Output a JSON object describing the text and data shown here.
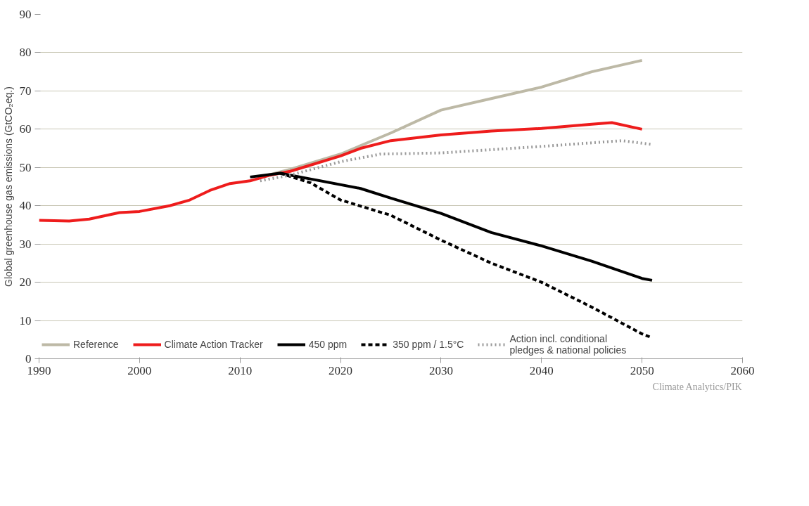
{
  "chart_data": {
    "type": "line",
    "ylabel": "Global greenhouse gas emissions (GtCO₂eq.)",
    "xlim": [
      1990,
      2060
    ],
    "xticks": [
      1990,
      2000,
      2010,
      2020,
      2030,
      2040,
      2050,
      2060
    ],
    "ylim": [
      0,
      90
    ],
    "yticks": [
      0,
      10,
      20,
      30,
      40,
      50,
      60,
      70,
      80,
      90
    ],
    "grid": "y",
    "legend": "bottom",
    "line_style": "solid",
    "marker": "none",
    "series": [
      {
        "name": "Reference",
        "color": "#bdb9a6",
        "x": [
          2012,
          2015,
          2020,
          2025,
          2030,
          2035,
          2040,
          2045,
          2050
        ],
        "values": [
          47.5,
          49.5,
          53.5,
          59,
          65,
          68,
          71,
          75,
          78
        ]
      },
      {
        "name": "Climate Action Tracker",
        "color": "#ee1c1c",
        "x": [
          1990,
          1993,
          1995,
          1998,
          2000,
          2003,
          2005,
          2007,
          2009,
          2011,
          2013,
          2015,
          2020,
          2022,
          2025,
          2030,
          2035,
          2040,
          2045,
          2047,
          2050
        ],
        "values": [
          36.2,
          36,
          36.5,
          38.2,
          38.5,
          40,
          41.5,
          44,
          45.8,
          46.5,
          48,
          49,
          53,
          55,
          57,
          58.5,
          59.5,
          60.2,
          61.3,
          61.7,
          60
        ]
      },
      {
        "name": "450 ppm",
        "color": "#000000",
        "x": [
          2011,
          2014,
          2017,
          2022,
          2025,
          2030,
          2035,
          2040,
          2045,
          2050,
          2051
        ],
        "values": [
          47.5,
          48.5,
          47,
          44.5,
          42,
          38,
          33,
          29.5,
          25.5,
          21,
          20.5
        ]
      },
      {
        "name": "350 ppm / 1.5°C",
        "color": "#000000",
        "line_style": "dashed",
        "x": [
          2014,
          2017,
          2020,
          2025,
          2030,
          2035,
          2040,
          2045,
          2050,
          2051
        ],
        "values": [
          48.5,
          46,
          41.5,
          37.5,
          31,
          25,
          20,
          13.5,
          6.5,
          5.5
        ]
      },
      {
        "name": "Action incl. conditional\npledges & national policies",
        "color": "#999999",
        "line_style": "dotted",
        "x": [
          2012,
          2015,
          2020,
          2024,
          2030,
          2040,
          2048,
          2051
        ],
        "values": [
          46.5,
          48,
          51.5,
          53.5,
          53.8,
          55.5,
          57,
          56
        ]
      }
    ],
    "annotations": [
      "Climate Analytics/PIK"
    ]
  }
}
